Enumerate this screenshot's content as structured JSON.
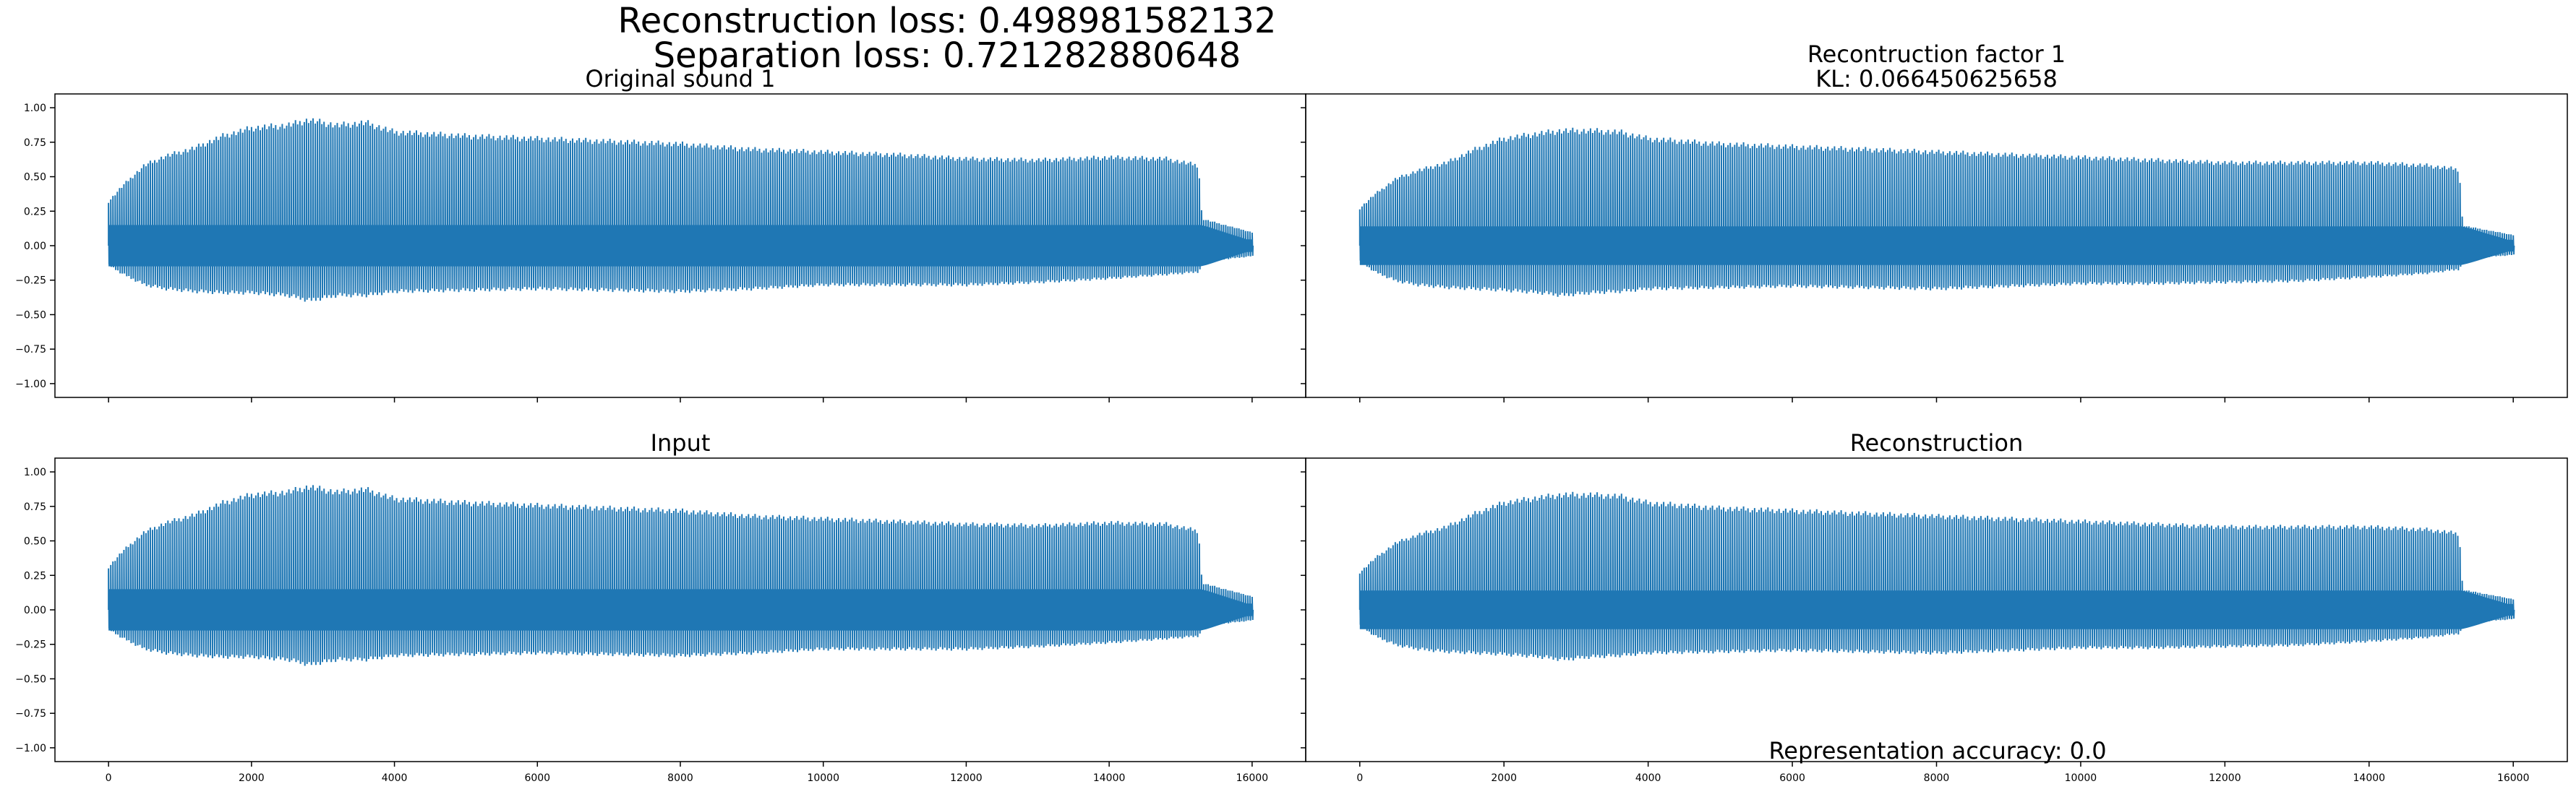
{
  "figure": {
    "suptitle_line1": "Reconstruction loss: 0.498981582132",
    "suptitle_line2": "Separation loss: 0.721282880648",
    "bottom_text": "Representation accuracy: 0.0"
  },
  "colors": {
    "line": "#1f77b4",
    "axes": "#000000",
    "background": "#ffffff"
  },
  "chart_data": [
    {
      "type": "line",
      "title_lines": [
        "Original sound 1"
      ],
      "x_ticks": [
        0,
        2000,
        4000,
        6000,
        8000,
        10000,
        12000,
        14000,
        16000
      ],
      "y_ticks": [
        1.0,
        0.75,
        0.5,
        0.25,
        0.0,
        -0.25,
        -0.5,
        -0.75,
        -1.0
      ],
      "y_tick_labels": [
        "1.00",
        "0.75",
        "0.50",
        "0.25",
        "0.00",
        "−0.25",
        "−0.50",
        "−0.75",
        "−1.00"
      ],
      "x_tick_labels_visible": false,
      "y_tick_labels_visible": true,
      "xlim": [
        -750,
        16750
      ],
      "ylim": [
        -1.1,
        1.1
      ],
      "x_range": [
        0,
        16000
      ],
      "envelope": {
        "x": [
          0,
          200,
          500,
          800,
          1200,
          1600,
          2000,
          2500,
          2800,
          3200,
          3600,
          4000,
          5000,
          6000,
          7000,
          8000,
          9000,
          10000,
          11000,
          12000,
          13000,
          14000,
          14800,
          15250,
          15300,
          16000
        ],
        "upper": [
          0.33,
          0.45,
          0.6,
          0.67,
          0.73,
          0.82,
          0.88,
          0.9,
          0.94,
          0.9,
          0.92,
          0.85,
          0.82,
          0.8,
          0.78,
          0.76,
          0.72,
          0.7,
          0.68,
          0.65,
          0.64,
          0.66,
          0.65,
          0.6,
          0.2,
          0.1
        ],
        "lower": [
          -0.15,
          -0.22,
          -0.3,
          -0.33,
          -0.35,
          -0.36,
          -0.36,
          -0.38,
          -0.42,
          -0.38,
          -0.38,
          -0.35,
          -0.34,
          -0.33,
          -0.34,
          -0.35,
          -0.33,
          -0.3,
          -0.3,
          -0.3,
          -0.28,
          -0.25,
          -0.22,
          -0.2,
          -0.12,
          -0.08
        ],
        "core": 0.15
      }
    },
    {
      "type": "line",
      "title_lines": [
        "Recontruction factor 1",
        "KL: 0.066450625658"
      ],
      "x_ticks": [
        0,
        2000,
        4000,
        6000,
        8000,
        10000,
        12000,
        14000,
        16000
      ],
      "y_ticks": [
        1.0,
        0.75,
        0.5,
        0.25,
        0.0,
        -0.25,
        -0.5,
        -0.75,
        -1.0
      ],
      "x_tick_labels_visible": false,
      "y_tick_labels_visible": false,
      "xlim": [
        -750,
        16750
      ],
      "ylim": [
        -1.1,
        1.1
      ],
      "x_range": [
        0,
        16000
      ],
      "envelope": {
        "x": [
          0,
          200,
          500,
          800,
          1200,
          1600,
          2000,
          2500,
          2800,
          3200,
          3600,
          4000,
          5000,
          6000,
          7000,
          8000,
          9000,
          10000,
          11000,
          12000,
          13000,
          14000,
          14800,
          15250,
          15300,
          16000
        ],
        "upper": [
          0.28,
          0.38,
          0.5,
          0.56,
          0.62,
          0.72,
          0.8,
          0.84,
          0.86,
          0.86,
          0.85,
          0.8,
          0.76,
          0.74,
          0.72,
          0.7,
          0.68,
          0.66,
          0.64,
          0.62,
          0.62,
          0.62,
          0.6,
          0.57,
          0.15,
          0.08
        ],
        "lower": [
          -0.12,
          -0.2,
          -0.27,
          -0.3,
          -0.32,
          -0.33,
          -0.34,
          -0.36,
          -0.38,
          -0.36,
          -0.35,
          -0.33,
          -0.32,
          -0.31,
          -0.32,
          -0.33,
          -0.31,
          -0.29,
          -0.29,
          -0.28,
          -0.27,
          -0.24,
          -0.21,
          -0.18,
          -0.1,
          -0.07
        ],
        "core": 0.14
      }
    },
    {
      "type": "line",
      "title_lines": [
        "Input"
      ],
      "x_ticks": [
        0,
        2000,
        4000,
        6000,
        8000,
        10000,
        12000,
        14000,
        16000
      ],
      "x_tick_labels": [
        "0",
        "2000",
        "4000",
        "6000",
        "8000",
        "10000",
        "12000",
        "14000",
        "16000"
      ],
      "y_ticks": [
        1.0,
        0.75,
        0.5,
        0.25,
        0.0,
        -0.25,
        -0.5,
        -0.75,
        -1.0
      ],
      "y_tick_labels": [
        "1.00",
        "0.75",
        "0.50",
        "0.25",
        "0.00",
        "−0.25",
        "−0.50",
        "−0.75",
        "−1.00"
      ],
      "x_tick_labels_visible": true,
      "y_tick_labels_visible": true,
      "xlim": [
        -750,
        16750
      ],
      "ylim": [
        -1.1,
        1.1
      ],
      "x_range": [
        0,
        16000
      ],
      "envelope": {
        "x": [
          0,
          200,
          500,
          800,
          1200,
          1600,
          2000,
          2500,
          2800,
          3200,
          3600,
          4000,
          5000,
          6000,
          7000,
          8000,
          9000,
          10000,
          11000,
          12000,
          13000,
          14000,
          14800,
          15250,
          15300,
          16000
        ],
        "upper": [
          0.32,
          0.44,
          0.58,
          0.65,
          0.71,
          0.8,
          0.86,
          0.88,
          0.92,
          0.88,
          0.9,
          0.83,
          0.8,
          0.78,
          0.76,
          0.74,
          0.7,
          0.68,
          0.66,
          0.64,
          0.63,
          0.65,
          0.64,
          0.59,
          0.2,
          0.1
        ],
        "lower": [
          -0.15,
          -0.22,
          -0.3,
          -0.33,
          -0.35,
          -0.36,
          -0.36,
          -0.38,
          -0.42,
          -0.38,
          -0.38,
          -0.35,
          -0.34,
          -0.33,
          -0.34,
          -0.35,
          -0.33,
          -0.3,
          -0.3,
          -0.3,
          -0.28,
          -0.25,
          -0.22,
          -0.2,
          -0.12,
          -0.08
        ],
        "core": 0.15
      }
    },
    {
      "type": "line",
      "title_lines": [
        "Reconstruction"
      ],
      "x_ticks": [
        0,
        2000,
        4000,
        6000,
        8000,
        10000,
        12000,
        14000,
        16000
      ],
      "x_tick_labels": [
        "0",
        "2000",
        "4000",
        "6000",
        "8000",
        "10000",
        "12000",
        "14000",
        "16000"
      ],
      "y_ticks": [
        1.0,
        0.75,
        0.5,
        0.25,
        0.0,
        -0.25,
        -0.5,
        -0.75,
        -1.0
      ],
      "x_tick_labels_visible": true,
      "y_tick_labels_visible": false,
      "xlim": [
        -750,
        16750
      ],
      "ylim": [
        -1.1,
        1.1
      ],
      "x_range": [
        0,
        16000
      ],
      "envelope": {
        "x": [
          0,
          200,
          500,
          800,
          1200,
          1600,
          2000,
          2500,
          2800,
          3200,
          3600,
          4000,
          5000,
          6000,
          7000,
          8000,
          9000,
          10000,
          11000,
          12000,
          13000,
          14000,
          14800,
          15250,
          15300,
          16000
        ],
        "upper": [
          0.28,
          0.38,
          0.5,
          0.56,
          0.62,
          0.72,
          0.8,
          0.84,
          0.86,
          0.86,
          0.85,
          0.8,
          0.76,
          0.74,
          0.72,
          0.7,
          0.68,
          0.66,
          0.64,
          0.62,
          0.62,
          0.62,
          0.6,
          0.57,
          0.15,
          0.08
        ],
        "lower": [
          -0.12,
          -0.2,
          -0.27,
          -0.3,
          -0.32,
          -0.33,
          -0.34,
          -0.36,
          -0.38,
          -0.36,
          -0.35,
          -0.33,
          -0.32,
          -0.31,
          -0.32,
          -0.33,
          -0.31,
          -0.29,
          -0.29,
          -0.28,
          -0.27,
          -0.24,
          -0.21,
          -0.18,
          -0.1,
          -0.07
        ],
        "core": 0.14
      }
    }
  ]
}
